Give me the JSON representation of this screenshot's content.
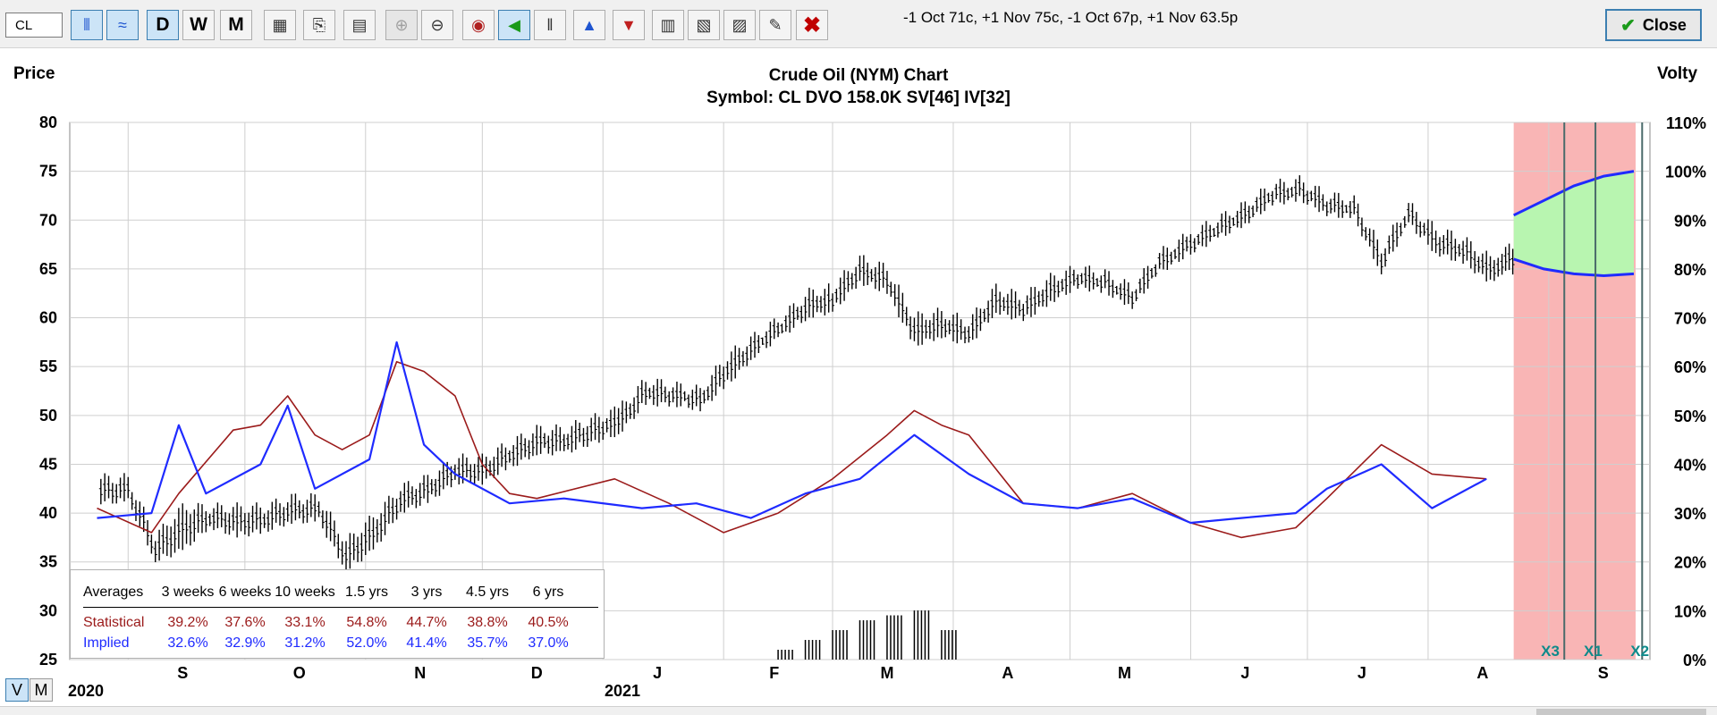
{
  "toolbar": {
    "symbol_value": "CL",
    "buttons": [
      {
        "icon": "bar-chart-icon",
        "glyph": "⫴",
        "active": true
      },
      {
        "icon": "line-chart-icon",
        "glyph": "≈",
        "active": true
      },
      {
        "label": "D",
        "active": true
      },
      {
        "label": "W",
        "active": false
      },
      {
        "label": "M",
        "active": false
      },
      {
        "icon": "chart-settings-icon",
        "glyph": "▦",
        "active": false
      },
      {
        "icon": "export-icon",
        "glyph": "⎘",
        "active": false
      },
      {
        "icon": "calculator-icon",
        "glyph": "▤",
        "active": false
      },
      {
        "icon": "zoom-in-icon",
        "glyph": "⊕",
        "active": false,
        "disabled": true
      },
      {
        "icon": "zoom-out-icon",
        "glyph": "⊖",
        "active": false
      },
      {
        "icon": "target-icon",
        "glyph": "◉",
        "active": false
      },
      {
        "icon": "green-arrow-icon",
        "glyph": "◀",
        "active": true
      },
      {
        "icon": "candles-icon",
        "glyph": "‖",
        "active": false
      },
      {
        "icon": "earnings-icon",
        "glyph": "▲",
        "active": false
      },
      {
        "icon": "expiration-icon",
        "glyph": "▼",
        "active": false
      },
      {
        "icon": "volume-icon",
        "glyph": "▥",
        "active": false
      },
      {
        "icon": "indicator-icon",
        "glyph": "▧",
        "active": false
      },
      {
        "icon": "news-icon",
        "glyph": "▨",
        "active": false
      },
      {
        "icon": "pencil-icon",
        "glyph": "✎",
        "active": false
      },
      {
        "icon": "delete-icon",
        "glyph": "✖",
        "active": false
      }
    ],
    "strategy_text": "-1 Oct 71c, +1 Nov 75c, -1 Oct 67p, +1 Nov 63.5p",
    "close_label": "Close"
  },
  "chart_data": {
    "type": "bar",
    "title": "Crude Oil (NYM) Chart",
    "subtitle": "Symbol: CL  DVO 158.0K  SV[46]  IV[32]",
    "left_axis_label": "Price",
    "right_axis_label": "Volty",
    "price_ylim": [
      25,
      80
    ],
    "price_ticks": [
      "80",
      "75",
      "70",
      "65",
      "60",
      "55",
      "50",
      "45",
      "40",
      "35",
      "30",
      "25"
    ],
    "volty_ylim": [
      0,
      110
    ],
    "volty_ticks": [
      "110%",
      "100%",
      "90%",
      "80%",
      "70%",
      "60%",
      "50%",
      "40%",
      "30%",
      "20%",
      "10%",
      "0%"
    ],
    "month_labels": [
      "S",
      "O",
      "N",
      "D",
      "J",
      "F",
      "M",
      "A",
      "M",
      "J",
      "J",
      "A",
      "S"
    ],
    "year_labels": [
      "2020",
      "2021"
    ],
    "expiration_markers": [
      "X3",
      "X1",
      "X2"
    ],
    "grid": true,
    "price_bars": [
      [
        "2020-08-25",
        43.5,
        42.5
      ],
      [
        "2020-09-01",
        43.5,
        42.5
      ],
      [
        "2020-09-08",
        37.5,
        36.5
      ],
      [
        "2020-09-15",
        40.5,
        37.5
      ],
      [
        "2020-09-22",
        40.5,
        40
      ],
      [
        "2020-09-29",
        40.5,
        39
      ],
      [
        "2020-10-06",
        40.5,
        39.5
      ],
      [
        "2020-10-13",
        41.5,
        40.5
      ],
      [
        "2020-10-20",
        41.5,
        40.5
      ],
      [
        "2020-10-27",
        37,
        35.5
      ],
      [
        "2020-11-03",
        39.5,
        37.5
      ],
      [
        "2020-11-10",
        42.5,
        41.5
      ],
      [
        "2020-11-17",
        43.5,
        42.5
      ],
      [
        "2020-11-24",
        45.5,
        44.5
      ],
      [
        "2020-12-01",
        45.5,
        44.5
      ],
      [
        "2020-12-08",
        47,
        46
      ],
      [
        "2020-12-15",
        48.5,
        47.5
      ],
      [
        "2020-12-22",
        48.5,
        47.5
      ],
      [
        "2021-01-05",
        50.5,
        49.5
      ],
      [
        "2021-01-12",
        53.5,
        52.5
      ],
      [
        "2021-01-19",
        53,
        52.5
      ],
      [
        "2021-01-26",
        52.5,
        52
      ],
      [
        "2021-02-02",
        56,
        54.5
      ],
      [
        "2021-02-09",
        58,
        57.5
      ],
      [
        "2021-02-16",
        60,
        59.5
      ],
      [
        "2021-02-23",
        62.5,
        61.5
      ],
      [
        "2021-03-01",
        63,
        62
      ],
      [
        "2021-03-08",
        66,
        65
      ],
      [
        "2021-03-15",
        65,
        64
      ],
      [
        "2021-03-22",
        60,
        58.5
      ],
      [
        "2021-03-29",
        60.5,
        59.5
      ],
      [
        "2021-04-05",
        59.5,
        58.5
      ],
      [
        "2021-04-12",
        63,
        62
      ],
      [
        "2021-04-19",
        62,
        61
      ],
      [
        "2021-04-26",
        64,
        63
      ],
      [
        "2021-05-03",
        65,
        64.5
      ],
      [
        "2021-05-10",
        64.5,
        64
      ],
      [
        "2021-05-17",
        63,
        62.5
      ],
      [
        "2021-05-24",
        66.5,
        66
      ],
      [
        "2021-06-01",
        68.5,
        68
      ],
      [
        "2021-06-08",
        70,
        69.5
      ],
      [
        "2021-06-15",
        71.5,
        71
      ],
      [
        "2021-06-22",
        73.5,
        73
      ],
      [
        "2021-06-29",
        74,
        73.5
      ],
      [
        "2021-07-06",
        72.5,
        72
      ],
      [
        "2021-07-13",
        72,
        71.5
      ],
      [
        "2021-07-20",
        67,
        66
      ],
      [
        "2021-07-27",
        71.5,
        71
      ],
      [
        "2021-08-03",
        69,
        68
      ],
      [
        "2021-08-10",
        68,
        67
      ],
      [
        "2021-08-17",
        66,
        65
      ],
      [
        "2021-08-20",
        67,
        66
      ]
    ],
    "statistical_volty": [
      [
        "2020-08-24",
        31
      ],
      [
        "2020-09-07",
        26
      ],
      [
        "2020-09-14",
        34
      ],
      [
        "2020-09-28",
        47
      ],
      [
        "2020-10-05",
        48
      ],
      [
        "2020-10-12",
        54
      ],
      [
        "2020-10-19",
        46
      ],
      [
        "2020-10-26",
        43
      ],
      [
        "2020-11-02",
        46
      ],
      [
        "2020-11-09",
        61
      ],
      [
        "2020-11-16",
        59
      ],
      [
        "2020-11-24",
        54
      ],
      [
        "2020-12-01",
        40
      ],
      [
        "2020-12-08",
        34
      ],
      [
        "2020-12-15",
        33
      ],
      [
        "2021-01-04",
        37
      ],
      [
        "2021-01-18",
        32
      ],
      [
        "2021-02-01",
        26
      ],
      [
        "2021-02-15",
        30
      ],
      [
        "2021-03-01",
        37
      ],
      [
        "2021-03-15",
        46
      ],
      [
        "2021-03-22",
        51
      ],
      [
        "2021-03-29",
        48
      ],
      [
        "2021-04-05",
        46
      ],
      [
        "2021-04-19",
        32
      ],
      [
        "2021-05-03",
        31
      ],
      [
        "2021-05-17",
        34
      ],
      [
        "2021-06-01",
        28
      ],
      [
        "2021-06-14",
        25
      ],
      [
        "2021-06-28",
        27
      ],
      [
        "2021-07-06",
        33
      ],
      [
        "2021-07-20",
        44
      ],
      [
        "2021-08-02",
        38
      ],
      [
        "2021-08-16",
        37
      ]
    ],
    "implied_volty": [
      [
        "2020-08-24",
        29
      ],
      [
        "2020-09-07",
        30
      ],
      [
        "2020-09-14",
        48
      ],
      [
        "2020-09-21",
        34
      ],
      [
        "2020-10-05",
        40
      ],
      [
        "2020-10-12",
        52
      ],
      [
        "2020-10-19",
        35
      ],
      [
        "2020-11-02",
        41
      ],
      [
        "2020-11-09",
        65
      ],
      [
        "2020-11-16",
        44
      ],
      [
        "2020-11-24",
        38
      ],
      [
        "2020-12-08",
        32
      ],
      [
        "2020-12-22",
        33
      ],
      [
        "2021-01-11",
        31
      ],
      [
        "2021-01-25",
        32
      ],
      [
        "2021-02-08",
        29
      ],
      [
        "2021-02-22",
        34
      ],
      [
        "2021-03-08",
        37
      ],
      [
        "2021-03-22",
        46
      ],
      [
        "2021-04-05",
        38
      ],
      [
        "2021-04-19",
        32
      ],
      [
        "2021-05-03",
        31
      ],
      [
        "2021-05-17",
        33
      ],
      [
        "2021-06-01",
        28
      ],
      [
        "2021-06-14",
        29
      ],
      [
        "2021-06-28",
        30
      ],
      [
        "2021-07-06",
        35
      ],
      [
        "2021-07-20",
        40
      ],
      [
        "2021-08-02",
        31
      ],
      [
        "2021-08-16",
        37
      ]
    ],
    "projection": {
      "upper_price": [
        [
          0,
          70.5
        ],
        [
          0.25,
          72
        ],
        [
          0.5,
          73.5
        ],
        [
          0.75,
          74.5
        ],
        [
          1,
          75
        ]
      ],
      "lower_price": [
        [
          0,
          66
        ],
        [
          0.25,
          65
        ],
        [
          0.5,
          64.5
        ],
        [
          0.75,
          64.3
        ],
        [
          1,
          64.5
        ]
      ]
    },
    "volume": [
      [
        "2021-02-15",
        2
      ],
      [
        "2021-02-22",
        4
      ],
      [
        "2021-03-01",
        6
      ],
      [
        "2021-03-08",
        8
      ],
      [
        "2021-03-15",
        9
      ],
      [
        "2021-03-22",
        10
      ],
      [
        "2021-03-29",
        6
      ]
    ]
  },
  "averages": {
    "header": [
      "Averages",
      "3 weeks",
      "6 weeks",
      "10 weeks",
      "1.5 yrs",
      "3 yrs",
      "4.5 yrs",
      "6 yrs"
    ],
    "statistical": {
      "label": "Statistical",
      "values": [
        "39.2%",
        "37.6%",
        "33.1%",
        "54.8%",
        "44.7%",
        "38.8%",
        "40.5%"
      ]
    },
    "implied": {
      "label": "Implied",
      "values": [
        "32.6%",
        "32.9%",
        "31.2%",
        "52.0%",
        "41.4%",
        "35.7%",
        "37.0%"
      ]
    }
  },
  "view_modes": [
    "V",
    "M"
  ],
  "colors": {
    "statistical": "#9b1b1b",
    "implied": "#1f2bff",
    "projection_green": "#b8f5b0",
    "projection_red": "#f9b5b5",
    "grid": "#cfcfcf"
  }
}
